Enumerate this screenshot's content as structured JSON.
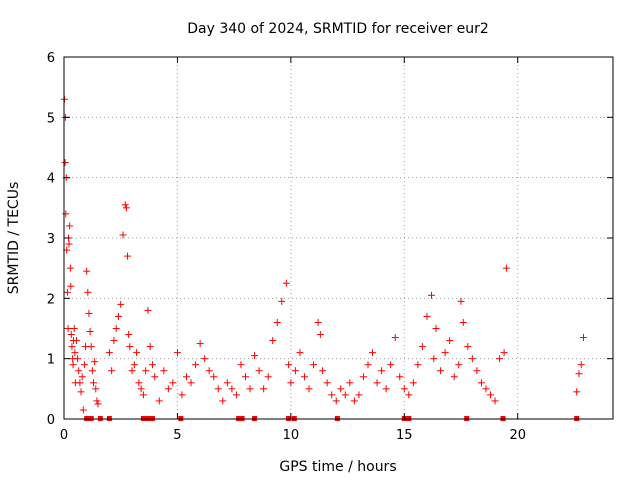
{
  "chart_data": {
    "type": "scatter",
    "title": "Day 340 of 2024, SRMTID for receiver eur2",
    "xlabel": "GPS time / hours",
    "ylabel": "SRMTID / TECUs",
    "xlim": [
      0,
      24.2
    ],
    "ylim": [
      0,
      6
    ],
    "xticks": [
      0,
      5,
      10,
      15,
      20
    ],
    "yticks": [
      0,
      1,
      2,
      3,
      4,
      5,
      6
    ],
    "grid": true,
    "marker": "plus",
    "color": "#ff0000",
    "series": [
      {
        "name": "SRMTID",
        "x": [
          0.02,
          0.05,
          0.06,
          0.08,
          0.1,
          0.12,
          0.15,
          0.18,
          0.2,
          0.22,
          0.25,
          0.28,
          0.3,
          0.32,
          0.35,
          0.38,
          0.4,
          0.42,
          0.45,
          0.48,
          0.5,
          0.55,
          0.6,
          0.65,
          0.7,
          0.75,
          0.8,
          0.85,
          0.9,
          0.95,
          1.0,
          1.05,
          1.1,
          1.15,
          1.2,
          1.25,
          1.3,
          1.35,
          1.4,
          1.45,
          1.5,
          2.0,
          2.1,
          2.2,
          2.3,
          2.4,
          2.5,
          2.6,
          2.7,
          2.75,
          2.8,
          2.85,
          2.9,
          3.0,
          3.1,
          3.2,
          3.3,
          3.4,
          3.5,
          3.6,
          3.7,
          3.8,
          3.9,
          4.0,
          4.2,
          4.4,
          4.6,
          4.8,
          5.0,
          5.2,
          5.4,
          5.6,
          5.8,
          6.0,
          6.2,
          6.4,
          6.6,
          6.8,
          7.0,
          7.2,
          7.4,
          7.6,
          7.8,
          8.0,
          8.2,
          8.4,
          8.6,
          8.8,
          9.0,
          9.2,
          9.4,
          9.6,
          9.8,
          9.9,
          10.0,
          10.2,
          10.4,
          10.6,
          10.8,
          11.0,
          11.2,
          11.3,
          11.4,
          11.6,
          11.8,
          12.0,
          12.2,
          12.4,
          12.6,
          12.8,
          13.0,
          13.2,
          13.4,
          13.6,
          13.8,
          14.0,
          14.2,
          14.4,
          14.6,
          14.8,
          15.0,
          15.2,
          15.4,
          15.6,
          15.8,
          16.0,
          16.2,
          16.3,
          16.4,
          16.6,
          16.8,
          17.0,
          17.2,
          17.4,
          17.5,
          17.6,
          17.8,
          18.0,
          18.2,
          18.4,
          18.6,
          18.8,
          19.0,
          19.2,
          19.4,
          19.5,
          22.6,
          22.7,
          22.8,
          22.9
        ],
        "y": [
          5.3,
          4.25,
          5.0,
          3.4,
          4.0,
          2.8,
          2.1,
          1.5,
          3.0,
          2.9,
          3.2,
          2.5,
          2.2,
          1.4,
          1.2,
          1.0,
          0.9,
          1.3,
          1.5,
          1.1,
          0.6,
          1.3,
          1.0,
          0.8,
          0.6,
          0.45,
          0.7,
          0.15,
          0.9,
          1.2,
          2.45,
          2.1,
          1.75,
          1.45,
          1.2,
          0.8,
          0.6,
          0.95,
          0.5,
          0.3,
          0.25,
          1.1,
          0.8,
          1.3,
          1.5,
          1.7,
          1.9,
          3.05,
          3.55,
          3.5,
          2.7,
          1.4,
          1.2,
          0.8,
          0.9,
          1.1,
          0.6,
          0.5,
          0.4,
          0.8,
          1.8,
          1.2,
          0.9,
          0.7,
          0.3,
          0.8,
          0.5,
          0.6,
          1.1,
          0.4,
          0.7,
          0.6,
          0.9,
          1.25,
          1.0,
          0.8,
          0.7,
          0.5,
          0.3,
          0.6,
          0.5,
          0.4,
          0.9,
          0.7,
          0.5,
          1.05,
          0.8,
          0.5,
          0.7,
          1.3,
          1.6,
          1.95,
          2.25,
          0.9,
          0.6,
          0.8,
          1.1,
          0.7,
          0.5,
          0.9,
          1.6,
          1.4,
          0.8,
          0.6,
          0.4,
          0.3,
          0.5,
          0.4,
          0.6,
          0.3,
          0.4,
          0.7,
          0.9,
          1.1,
          0.6,
          0.8,
          0.5,
          0.9,
          1.35,
          0.7,
          0.5,
          0.4,
          0.6,
          0.9,
          1.2,
          1.7,
          2.05,
          1.0,
          1.5,
          0.8,
          1.1,
          1.3,
          0.7,
          0.9,
          1.95,
          1.6,
          1.2,
          1.0,
          0.8,
          0.6,
          0.5,
          0.4,
          0.3,
          1.0,
          1.1,
          2.5,
          0.45,
          0.75,
          0.9,
          1.35
        ]
      }
    ],
    "zero_markers_x": [
      1.0,
      1.2,
      1.6,
      2.0,
      3.5,
      3.65,
      3.8,
      3.9,
      5.15,
      7.7,
      7.85,
      8.4,
      9.9,
      10.15,
      12.05,
      15.0,
      15.2,
      17.75,
      19.35,
      22.6
    ]
  }
}
